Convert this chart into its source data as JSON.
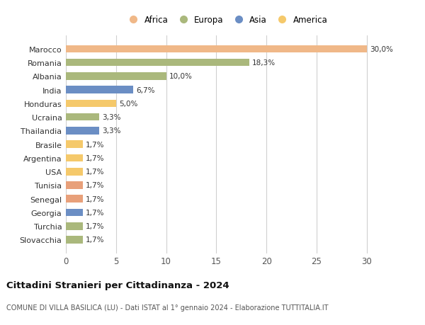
{
  "countries": [
    "Slovacchia",
    "Turchia",
    "Georgia",
    "Senegal",
    "Tunisia",
    "USA",
    "Argentina",
    "Brasile",
    "Thailandia",
    "Ucraina",
    "Honduras",
    "India",
    "Albania",
    "Romania",
    "Marocco"
  ],
  "values": [
    1.7,
    1.7,
    1.7,
    1.7,
    1.7,
    1.7,
    1.7,
    1.7,
    3.3,
    3.3,
    5.0,
    6.7,
    10.0,
    18.3,
    30.0
  ],
  "labels": [
    "1,7%",
    "1,7%",
    "1,7%",
    "1,7%",
    "1,7%",
    "1,7%",
    "1,7%",
    "1,7%",
    "3,3%",
    "3,3%",
    "5,0%",
    "6,7%",
    "10,0%",
    "18,3%",
    "30,0%"
  ],
  "colors": [
    "#aab87c",
    "#aab87c",
    "#6b8ec4",
    "#e8a07a",
    "#e8a07a",
    "#f5c96b",
    "#f5c96b",
    "#f5c96b",
    "#6b8ec4",
    "#aab87c",
    "#f5c96b",
    "#6b8ec4",
    "#aab87c",
    "#aab87c",
    "#f0b888"
  ],
  "legend_labels": [
    "Africa",
    "Europa",
    "Asia",
    "America"
  ],
  "legend_colors": [
    "#f0b888",
    "#aab87c",
    "#6b8ec4",
    "#f5c96b"
  ],
  "title": "Cittadini Stranieri per Cittadinanza - 2024",
  "subtitle": "COMUNE DI VILLA BASILICA (LU) - Dati ISTAT al 1° gennaio 2024 - Elaborazione TUTTITALIA.IT",
  "xlim": [
    0,
    32
  ],
  "xticks": [
    0,
    5,
    10,
    15,
    20,
    25,
    30
  ],
  "background_color": "#ffffff",
  "grid_color": "#d0d0d0"
}
